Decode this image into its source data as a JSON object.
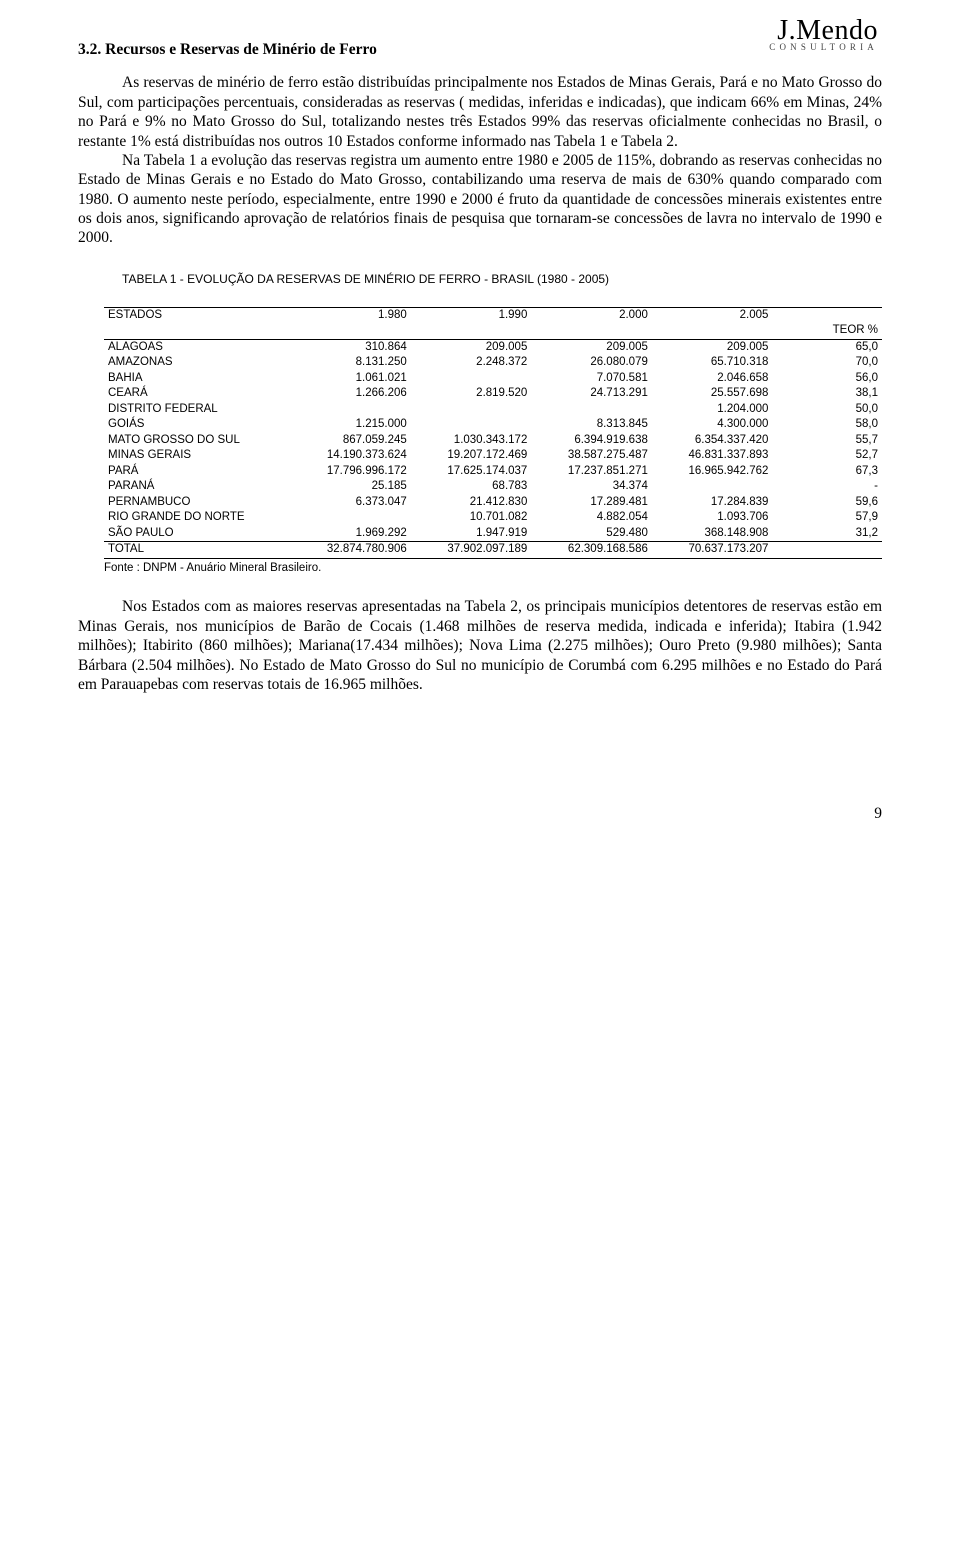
{
  "logo": {
    "main": "J.Mendo",
    "sub": "CONSULTORIA"
  },
  "heading": "3.2. Recursos e Reservas de Minério de Ferro",
  "para1": "As reservas de minério de ferro estão distribuídas principalmente nos Estados de Minas Gerais, Pará e no Mato Grosso do Sul, com participações percentuais, consideradas as reservas ( medidas, inferidas e indicadas), que indicam 66% em Minas, 24% no Pará e 9% no Mato Grosso do Sul, totalizando nestes três Estados 99% das reservas oficialmente conhecidas no Brasil, o restante 1% está distribuídas nos outros 10 Estados conforme informado nas Tabela 1 e Tabela 2.",
  "para2": "Na Tabela 1 a evolução das reservas registra um aumento entre 1980 e 2005 de 115%, dobrando as reservas conhecidas  no Estado de Minas Gerais  e  no Estado do Mato Grosso, contabilizando uma reserva de mais de 630% quando comparado com 1980. O aumento  neste período, especialmente, entre 1990 e 2000 é fruto da quantidade de concessões minerais existentes entre os dois anos, significando aprovação  de relatórios finais de pesquisa que tornaram-se concessões de lavra no intervalo de 1990 e 2000.",
  "tableCaption": "TABELA 1 - EVOLUÇÃO DA RESERVAS DE MINÉRIO DE FERRO - BRASIL (1980 - 2005)",
  "header": {
    "c0": "ESTADOS",
    "c1": "1.980",
    "c2": "1.990",
    "c3": "2.000",
    "c4": "2.005",
    "c5": "TEOR %"
  },
  "rows": [
    {
      "c0": "ALAGOAS",
      "c1": "310.864",
      "c2": "209.005",
      "c3": "209.005",
      "c4": "209.005",
      "c5": "65,0"
    },
    {
      "c0": "AMAZONAS",
      "c1": "8.131.250",
      "c2": "2.248.372",
      "c3": "26.080.079",
      "c4": "65.710.318",
      "c5": "70,0"
    },
    {
      "c0": "BAHIA",
      "c1": "1.061.021",
      "c2": "",
      "c3": "7.070.581",
      "c4": "2.046.658",
      "c5": "56,0"
    },
    {
      "c0": "CEARÁ",
      "c1": "1.266.206",
      "c2": "2.819.520",
      "c3": "24.713.291",
      "c4": "25.557.698",
      "c5": "38,1"
    },
    {
      "c0": "DISTRITO FEDERAL",
      "c1": "",
      "c2": "",
      "c3": "",
      "c4": "1.204.000",
      "c5": "50,0"
    },
    {
      "c0": "GOIÁS",
      "c1": "1.215.000",
      "c2": "",
      "c3": "8.313.845",
      "c4": "4.300.000",
      "c5": "58,0"
    },
    {
      "c0": "MATO GROSSO DO SUL",
      "c1": "867.059.245",
      "c2": "1.030.343.172",
      "c3": "6.394.919.638",
      "c4": "6.354.337.420",
      "c5": "55,7"
    },
    {
      "c0": "MINAS GERAIS",
      "c1": "14.190.373.624",
      "c2": "19.207.172.469",
      "c3": "38.587.275.487",
      "c4": "46.831.337.893",
      "c5": "52,7"
    },
    {
      "c0": "PARÁ",
      "c1": "17.796.996.172",
      "c2": "17.625.174.037",
      "c3": "17.237.851.271",
      "c4": "16.965.942.762",
      "c5": "67,3"
    },
    {
      "c0": "PARANÁ",
      "c1": "25.185",
      "c2": "68.783",
      "c3": "34.374",
      "c4": "",
      "c5": "-"
    },
    {
      "c0": "PERNAMBUCO",
      "c1": "6.373.047",
      "c2": "21.412.830",
      "c3": "17.289.481",
      "c4": "17.284.839",
      "c5": "59,6"
    },
    {
      "c0": "RIO GRANDE DO NORTE",
      "c1": "",
      "c2": "10.701.082",
      "c3": "4.882.054",
      "c4": "1.093.706",
      "c5": "57,9"
    },
    {
      "c0": "SÃO PAULO",
      "c1": "1.969.292",
      "c2": "1.947.919",
      "c3": "529.480",
      "c4": "368.148.908",
      "c5": "31,2"
    }
  ],
  "total": {
    "c0": "TOTAL",
    "c1": "32.874.780.906",
    "c2": "37.902.097.189",
    "c3": "62.309.168.586",
    "c4": "70.637.173.207",
    "c5": ""
  },
  "source": "Fonte : DNPM - Anuário Mineral Brasileiro.",
  "para3": "Nos Estados com as maiores reservas apresentadas na Tabela 2, os principais municípios detentores de reservas estão em Minas Gerais, nos municípios de Barão de Cocais (1.468 milhões de reserva medida, indicada e inferida); Itabira (1.942 milhões); Itabirito (860 milhões); Mariana(17.434 milhões); Nova Lima (2.275 milhões); Ouro Preto (9.980 milhões); Santa Bárbara (2.504 milhões). No Estado de Mato Grosso do Sul no município de Corumbá com 6.295 milhões e no Estado do Pará em Parauapebas com reservas totais de 16.965 milhões.",
  "pageNumber": "9"
}
